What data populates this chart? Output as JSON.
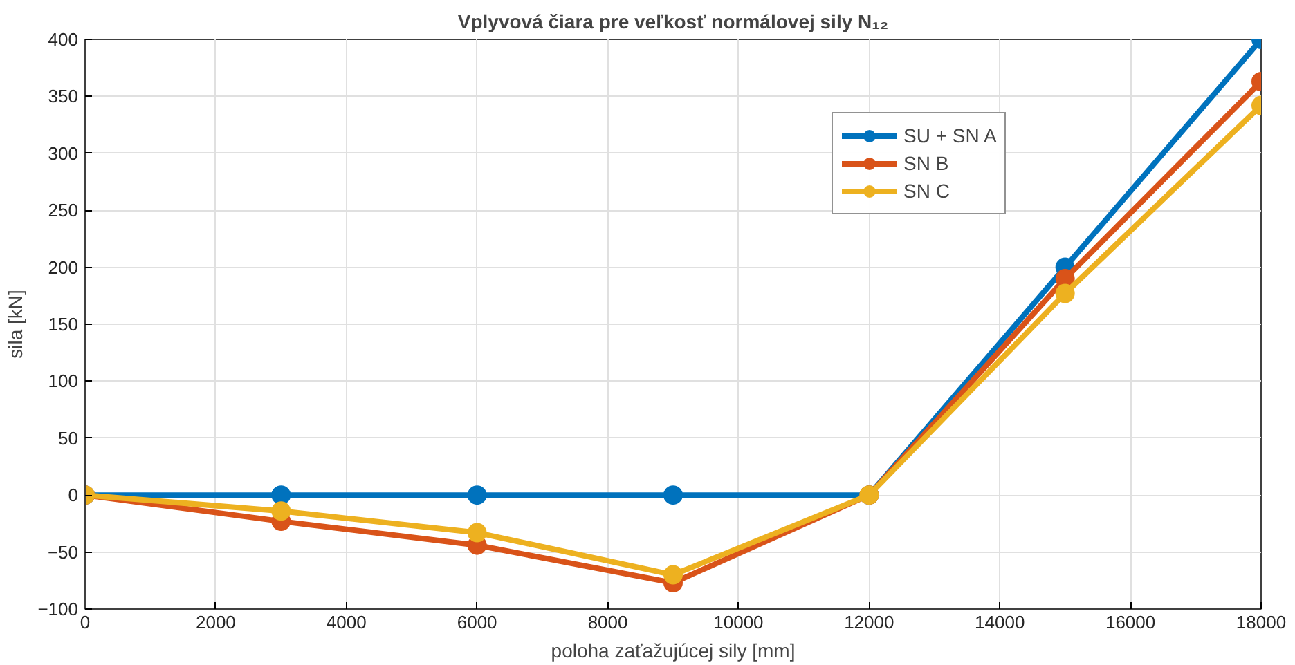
{
  "chart_data": {
    "type": "line",
    "title": "Vplyvová čiara pre veľkosť normálovej sily N₁₂",
    "xlabel": "poloha zaťažujúcej sily [mm]",
    "ylabel": "sila [kN]",
    "x": [
      0,
      3000,
      6000,
      9000,
      12000,
      15000,
      18000
    ],
    "series": [
      {
        "name": "SU + SN A",
        "color": "#0072bd",
        "values": [
          0,
          0,
          0,
          0,
          0,
          200,
          400
        ]
      },
      {
        "name": "SN B",
        "color": "#d95319",
        "values": [
          0,
          -23,
          -44,
          -77,
          0,
          190,
          363
        ]
      },
      {
        "name": "SN C",
        "color": "#edb120",
        "values": [
          0,
          -14,
          -33,
          -70,
          0,
          177,
          342
        ]
      }
    ],
    "xlim": [
      0,
      18000
    ],
    "ylim": [
      -100,
      400
    ],
    "xticks": [
      0,
      2000,
      4000,
      6000,
      8000,
      10000,
      12000,
      14000,
      16000,
      18000
    ],
    "yticks": [
      -100,
      -50,
      0,
      50,
      100,
      150,
      200,
      250,
      300,
      350,
      400
    ],
    "grid": true,
    "legend": "top right",
    "marker": "circle",
    "line_style": "solid"
  }
}
